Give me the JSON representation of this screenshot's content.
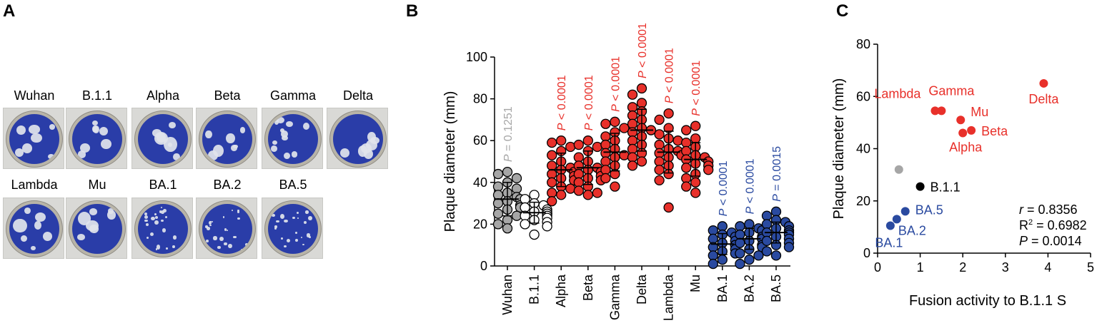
{
  "panels": {
    "a": {
      "letter": "A",
      "wells": [
        {
          "label": "Wuhan",
          "density": "large"
        },
        {
          "label": "B.1.1",
          "density": "large"
        },
        {
          "label": "Alpha",
          "density": "large"
        },
        {
          "label": "Beta",
          "density": "large"
        },
        {
          "label": "Gamma",
          "density": "medium"
        },
        {
          "label": "Delta",
          "density": "large"
        },
        {
          "label": "Lambda",
          "density": "large"
        },
        {
          "label": "Mu",
          "density": "large"
        },
        {
          "label": "BA.1",
          "density": "small"
        },
        {
          "label": "BA.2",
          "density": "small"
        },
        {
          "label": "BA.5",
          "density": "small"
        }
      ]
    },
    "b": {
      "letter": "B"
    },
    "c": {
      "letter": "C"
    }
  },
  "colors": {
    "wuhan": "#a6a6a6",
    "b11": "#ffffff",
    "variant": "#e8302a",
    "omicron": "#2a4aa0",
    "black": "#000000"
  },
  "chart_data": [
    {
      "type": "scatter",
      "subtype": "dot-plot",
      "title": "",
      "ylabel": "Plaque diameter (mm)",
      "xlabel": "",
      "ylim": [
        0,
        100
      ],
      "yticks": [
        0,
        20,
        40,
        60,
        80,
        100
      ],
      "categories": [
        "Wuhan",
        "B.1.1",
        "Alpha",
        "Beta",
        "Gamma",
        "Delta",
        "Lambda",
        "Mu",
        "BA.1",
        "BA.2",
        "BA.5"
      ],
      "color_keys": [
        "wuhan",
        "b11",
        "variant",
        "variant",
        "variant",
        "variant",
        "variant",
        "variant",
        "omicron",
        "omicron",
        "omicron"
      ],
      "means": [
        32,
        25.5,
        46,
        47,
        54.5,
        65,
        54.5,
        51,
        10.5,
        13,
        16
      ],
      "sd": [
        8,
        5,
        8,
        8,
        9,
        10,
        10,
        8,
        5,
        5,
        5
      ],
      "pvalue_prefix": "P",
      "pvalues": [
        "= 0.1251",
        "",
        "< 0.0001",
        "< 0.0001",
        "< 0.0001",
        "< 0.0001",
        "< 0.0001",
        "< 0.0001",
        "< 0.0001",
        "< 0.0001",
        "= 0.0015"
      ],
      "points": [
        [
          45,
          44,
          42,
          40,
          38,
          37,
          35,
          34,
          33,
          32,
          31,
          30,
          29,
          28,
          27,
          25,
          24,
          22,
          20,
          18
        ],
        [
          34,
          32,
          30,
          29,
          28,
          27,
          26,
          26,
          25,
          25,
          24,
          24,
          23,
          22,
          21,
          20,
          19,
          15
        ],
        [
          60,
          59,
          57,
          55,
          53,
          50,
          48,
          47,
          46,
          45,
          44,
          43,
          42,
          41,
          40,
          38,
          37,
          35,
          34,
          31
        ],
        [
          60,
          58,
          57,
          55,
          52,
          50,
          48,
          47,
          46,
          45,
          44,
          43,
          42,
          41,
          40,
          38,
          36,
          35,
          34
        ],
        [
          69,
          68,
          66,
          64,
          62,
          60,
          58,
          56,
          54,
          53,
          52,
          50,
          48,
          46,
          44,
          42,
          38
        ],
        [
          85,
          82,
          78,
          76,
          74,
          72,
          70,
          68,
          66,
          65,
          64,
          62,
          60,
          58,
          56,
          54,
          52,
          50,
          48
        ],
        [
          73,
          70,
          66,
          63,
          61,
          60,
          58,
          56,
          55,
          54,
          53,
          52,
          50,
          48,
          46,
          44,
          41,
          28
        ],
        [
          67,
          65,
          61,
          59,
          57,
          55,
          53,
          52,
          51,
          50,
          49,
          48,
          47,
          46,
          44,
          42,
          40,
          38,
          35
        ],
        [
          19,
          17,
          16,
          15,
          14,
          13,
          12,
          11,
          10,
          10,
          9,
          8,
          7,
          6,
          5,
          3,
          1
        ],
        [
          20,
          19,
          18,
          17,
          16,
          15,
          14,
          13,
          13,
          12,
          11,
          10,
          9,
          8,
          6,
          5,
          3,
          1
        ],
        [
          26,
          24,
          22,
          21,
          20,
          19,
          18,
          17,
          16,
          16,
          15,
          14,
          13,
          12,
          11,
          10,
          9,
          7,
          5
        ]
      ]
    },
    {
      "type": "scatter",
      "title": "",
      "xlabel": "Fusion activity to B.1.1 S",
      "ylabel": "Plaque diameter (mm)",
      "xlim": [
        0,
        5
      ],
      "ylim": [
        0,
        80
      ],
      "xticks": [
        0,
        1,
        2,
        3,
        4,
        5
      ],
      "yticks": [
        0,
        20,
        40,
        60,
        80
      ],
      "points": [
        {
          "label": "",
          "x": 0.5,
          "y": 32,
          "color_key": "wuhan"
        },
        {
          "label": "B.1.1",
          "x": 1.0,
          "y": 25.5,
          "color_key": "black"
        },
        {
          "label": "Alpha",
          "x": 2.0,
          "y": 46,
          "color_key": "variant"
        },
        {
          "label": "Beta",
          "x": 2.2,
          "y": 47,
          "color_key": "variant"
        },
        {
          "label": "Gamma",
          "x": 1.5,
          "y": 54.5,
          "color_key": "variant"
        },
        {
          "label": "Delta",
          "x": 3.9,
          "y": 65,
          "color_key": "variant"
        },
        {
          "label": "Lambda",
          "x": 1.35,
          "y": 54.5,
          "color_key": "variant"
        },
        {
          "label": "Mu",
          "x": 1.95,
          "y": 51,
          "color_key": "variant"
        },
        {
          "label": "BA.1",
          "x": 0.3,
          "y": 10.5,
          "color_key": "omicron"
        },
        {
          "label": "BA.2",
          "x": 0.45,
          "y": 13,
          "color_key": "omicron"
        },
        {
          "label": "BA.5",
          "x": 0.65,
          "y": 16,
          "color_key": "omicron"
        }
      ],
      "stats": {
        "r_symbol": "r",
        "r_value": " = 0.8356",
        "r2_symbol": "R",
        "r2_sup": "2",
        "r2_value": " = 0.6982",
        "p_symbol": "P",
        "p_value": " = 0.0014"
      }
    }
  ]
}
